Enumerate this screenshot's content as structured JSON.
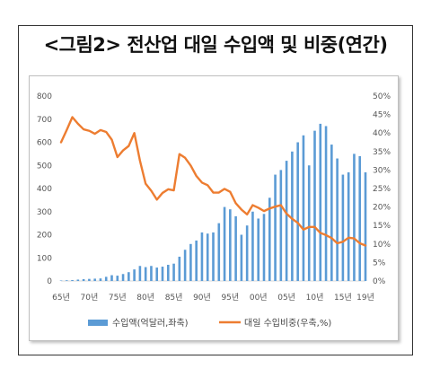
{
  "header": {
    "title": "<그림2> 전산업 대일 수입액 및 비중(연간)"
  },
  "chart_data": {
    "type": "bar+line",
    "x": [
      1965,
      1966,
      1967,
      1968,
      1969,
      1970,
      1971,
      1972,
      1973,
      1974,
      1975,
      1976,
      1977,
      1978,
      1979,
      1980,
      1981,
      1982,
      1983,
      1984,
      1985,
      1986,
      1987,
      1988,
      1989,
      1990,
      1991,
      1992,
      1993,
      1994,
      1995,
      1996,
      1997,
      1998,
      1999,
      2000,
      2001,
      2002,
      2003,
      2004,
      2005,
      2006,
      2007,
      2008,
      2009,
      2010,
      2011,
      2012,
      2013,
      2014,
      2015,
      2016,
      2017,
      2018,
      2019
    ],
    "x_ticks": [
      "65년",
      "70년",
      "75년",
      "80년",
      "85년",
      "90년",
      "95년",
      "00년",
      "05년",
      "10년",
      "15년",
      "19년"
    ],
    "y_left": {
      "ylim": [
        0,
        800
      ],
      "ticks": [
        "0",
        "100",
        "200",
        "300",
        "400",
        "500",
        "600",
        "700",
        "800"
      ]
    },
    "y_right": {
      "ylim": [
        0,
        50
      ],
      "ticks": [
        "0%",
        "5%",
        "10%",
        "15%",
        "20%",
        "25%",
        "30%",
        "35%",
        "40%",
        "45%",
        "50%"
      ]
    },
    "series": [
      {
        "name": "수입액(억달러,좌축)",
        "type": "bar",
        "axis": "left",
        "color": "#5b9bd5",
        "values": [
          2,
          3,
          4,
          6,
          8,
          9,
          10,
          11,
          18,
          25,
          23,
          30,
          38,
          50,
          65,
          60,
          65,
          58,
          62,
          70,
          75,
          105,
          135,
          160,
          175,
          210,
          205,
          210,
          250,
          320,
          310,
          280,
          200,
          240,
          300,
          270,
          290,
          360,
          460,
          480,
          520,
          560,
          600,
          630,
          500,
          650,
          680,
          670,
          590,
          530,
          460,
          470,
          550,
          540,
          470
        ]
      },
      {
        "name": "대일 수입비중(우축,%)",
        "type": "line",
        "axis": "right",
        "color": "#ed7d31",
        "values": [
          37.5,
          40.8,
          44.3,
          42.5,
          41.0,
          40.6,
          39.8,
          40.8,
          40.3,
          38.2,
          33.5,
          35.3,
          36.5,
          40.0,
          32.5,
          26.3,
          24.4,
          22.0,
          23.8,
          24.8,
          24.5,
          34.3,
          33.3,
          31.2,
          28.4,
          26.6,
          25.9,
          23.9,
          23.9,
          24.9,
          24.1,
          21.0,
          19.3,
          18.0,
          20.5,
          19.8,
          18.9,
          19.6,
          20.1,
          20.5,
          18.2,
          16.8,
          15.7,
          13.9,
          14.6,
          14.6,
          13.0,
          12.4,
          11.6,
          10.2,
          10.6,
          11.7,
          11.5,
          10.2,
          9.6
        ]
      }
    ],
    "legend_position": "bottom",
    "grid": false
  }
}
